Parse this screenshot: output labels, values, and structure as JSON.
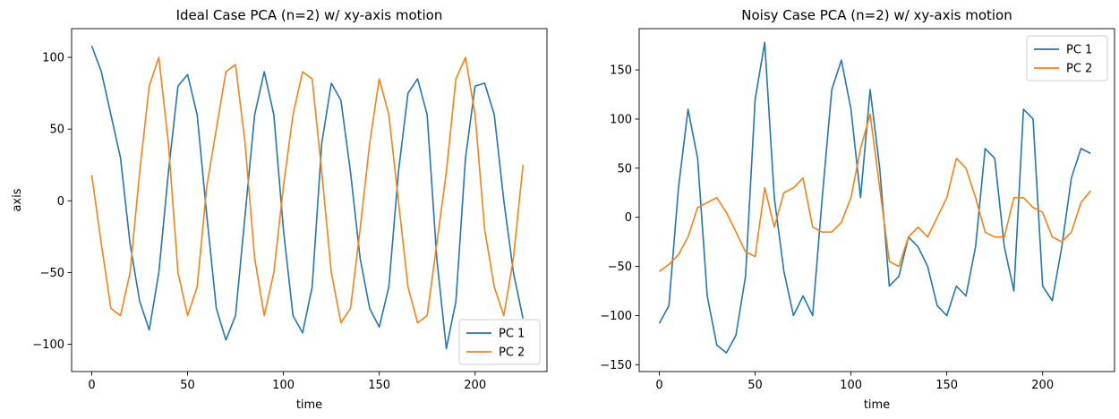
{
  "figure": {
    "background": "#ffffff"
  },
  "chart_data": [
    {
      "type": "line",
      "title": "Ideal Case PCA (n=2) w/ xy-axis motion",
      "xlabel": "time",
      "ylabel": "axis",
      "xlim": [
        -10.5,
        237.5
      ],
      "ylim": [
        -119,
        120
      ],
      "xticks": [
        0,
        50,
        100,
        150,
        200
      ],
      "yticks": [
        -100,
        -50,
        0,
        50,
        100
      ],
      "legend_position": "lower-right",
      "series": [
        {
          "name": "PC 1",
          "color": "#1f77b4",
          "x": [
            0,
            5,
            10,
            15,
            20,
            25,
            30,
            35,
            40,
            45,
            50,
            55,
            60,
            65,
            70,
            75,
            80,
            85,
            90,
            95,
            100,
            105,
            110,
            115,
            120,
            125,
            130,
            135,
            140,
            145,
            150,
            155,
            160,
            165,
            170,
            175,
            180,
            185,
            190,
            195,
            200,
            205,
            210,
            215,
            220,
            225
          ],
          "y": [
            108,
            90,
            60,
            30,
            -30,
            -70,
            -90,
            -50,
            20,
            80,
            88,
            60,
            -10,
            -75,
            -97,
            -80,
            -10,
            60,
            90,
            60,
            -20,
            -80,
            -92,
            -60,
            40,
            82,
            70,
            20,
            -40,
            -75,
            -88,
            -60,
            20,
            75,
            85,
            60,
            -40,
            -103,
            -70,
            30,
            80,
            82,
            60,
            0,
            -50,
            -82
          ]
        },
        {
          "name": "PC 2",
          "color": "#ff7f0e",
          "x": [
            0,
            5,
            10,
            15,
            20,
            25,
            30,
            35,
            40,
            45,
            50,
            55,
            60,
            65,
            70,
            75,
            80,
            85,
            90,
            95,
            100,
            105,
            110,
            115,
            120,
            125,
            130,
            135,
            140,
            145,
            150,
            155,
            160,
            165,
            170,
            175,
            180,
            185,
            190,
            195,
            200,
            205,
            210,
            215,
            220,
            225
          ],
          "y": [
            18,
            -30,
            -75,
            -80,
            -50,
            20,
            80,
            100,
            40,
            -50,
            -80,
            -60,
            10,
            50,
            90,
            95,
            40,
            -40,
            -80,
            -50,
            10,
            60,
            90,
            85,
            20,
            -50,
            -85,
            -75,
            -20,
            40,
            85,
            60,
            0,
            -60,
            -85,
            -80,
            -30,
            20,
            85,
            100,
            60,
            -20,
            -60,
            -80,
            -40,
            25
          ]
        }
      ]
    },
    {
      "type": "line",
      "title": "Noisy Case PCA (n=2) w/ xy-axis motion",
      "xlabel": "time",
      "ylabel": "",
      "xlim": [
        -10.5,
        237.5
      ],
      "ylim": [
        -157,
        192
      ],
      "xticks": [
        0,
        50,
        100,
        150,
        200
      ],
      "yticks": [
        -150,
        -100,
        -50,
        0,
        50,
        100,
        150
      ],
      "legend_position": "upper-right",
      "series": [
        {
          "name": "PC 1",
          "color": "#1f77b4",
          "x": [
            0,
            5,
            10,
            15,
            20,
            25,
            30,
            35,
            40,
            45,
            50,
            55,
            60,
            65,
            70,
            75,
            80,
            85,
            90,
            95,
            100,
            105,
            110,
            115,
            120,
            125,
            130,
            135,
            140,
            145,
            150,
            155,
            160,
            165,
            170,
            175,
            180,
            185,
            190,
            195,
            200,
            205,
            210,
            215,
            220,
            225
          ],
          "y": [
            -108,
            -90,
            30,
            110,
            60,
            -80,
            -130,
            -138,
            -120,
            -60,
            120,
            178,
            20,
            -55,
            -100,
            -80,
            -100,
            20,
            130,
            160,
            110,
            20,
            130,
            50,
            -70,
            -60,
            -20,
            -30,
            -50,
            -90,
            -100,
            -70,
            -80,
            -30,
            70,
            60,
            -30,
            -75,
            110,
            100,
            -70,
            -85,
            -30,
            40,
            70,
            65
          ]
        },
        {
          "name": "PC 2",
          "color": "#ff7f0e",
          "x": [
            0,
            5,
            10,
            15,
            20,
            25,
            30,
            35,
            40,
            45,
            50,
            55,
            60,
            65,
            70,
            75,
            80,
            85,
            90,
            95,
            100,
            105,
            110,
            115,
            120,
            125,
            130,
            135,
            140,
            145,
            150,
            155,
            160,
            165,
            170,
            175,
            180,
            185,
            190,
            195,
            200,
            205,
            210,
            215,
            220,
            225
          ],
          "y": [
            -55,
            -48,
            -38,
            -20,
            10,
            15,
            20,
            5,
            -15,
            -35,
            -40,
            30,
            -10,
            25,
            30,
            40,
            -10,
            -15,
            -15,
            -5,
            20,
            70,
            105,
            30,
            -45,
            -50,
            -20,
            -10,
            -20,
            0,
            20,
            60,
            50,
            20,
            -15,
            -20,
            -20,
            20,
            20,
            10,
            5,
            -20,
            -25,
            -15,
            15,
            27
          ]
        }
      ]
    }
  ]
}
